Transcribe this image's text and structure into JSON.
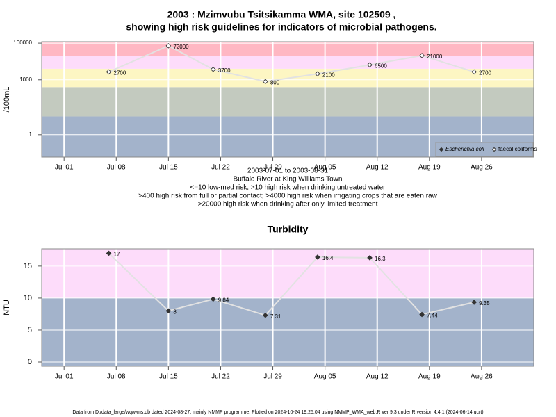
{
  "chart_data": [
    {
      "type": "line",
      "title": [
        "2003 : Mzimvubu Tsitsikamma WMA, site 102509 ,",
        "showing high risk guidelines for indicators of microbial pathogens."
      ],
      "y_label": "/100mL",
      "notes": [
        "2003-07-01 to 2003-08-31",
        "Buffalo River at King Williams Town",
        "<=10 low-med risk; >10 high risk when drinking untreated water",
        ">400 high risk from full or partial contact; >4000 high risk when irrigating crops that are eaten raw",
        ">20000 high risk when drinking after only limited treatment"
      ],
      "x": [
        "2003-07-07",
        "2003-07-15",
        "2003-07-21",
        "2003-07-28",
        "2003-08-04",
        "2003-08-11",
        "2003-08-18",
        "2003-08-25"
      ],
      "xlim": [
        "2003-06-28",
        "2003-09-02"
      ],
      "xticks": [
        {
          "value": "2003-07-01",
          "label": "Jul 01"
        },
        {
          "value": "2003-07-08",
          "label": "Jul 08"
        },
        {
          "value": "2003-07-15",
          "label": "Jul 15"
        },
        {
          "value": "2003-07-22",
          "label": "Jul 22"
        },
        {
          "value": "2003-07-29",
          "label": "Jul 29"
        },
        {
          "value": "2003-08-05",
          "label": "Aug 05"
        },
        {
          "value": "2003-08-12",
          "label": "Aug 12"
        },
        {
          "value": "2003-08-19",
          "label": "Aug 19"
        },
        {
          "value": "2003-08-26",
          "label": "Aug 26"
        }
      ],
      "log_scale": true,
      "ylim": [
        0.06,
        120000
      ],
      "yticks": [
        1,
        1000,
        100000
      ],
      "band_edges": [
        10,
        400,
        4000,
        20000
      ],
      "band_colors": [
        "#a3b3cb",
        "#c3cabf",
        "#fdf6c3",
        "#fddcfa",
        "#ffb7c3"
      ],
      "grid": true,
      "legend": "bottom-right",
      "series": [
        {
          "name": "Escherichia coli",
          "color": "#333333",
          "filled": true,
          "values": [
            null,
            null,
            null,
            null,
            null,
            null,
            null,
            null
          ]
        },
        {
          "name": "faecal coliforms",
          "color": "#333333",
          "filled": false,
          "values": [
            2700,
            72000,
            3700,
            800,
            2100,
            6500,
            21000,
            2700
          ]
        }
      ]
    },
    {
      "type": "line",
      "title": "Turbidity",
      "y_label": "NTU",
      "x": [
        "2003-07-07",
        "2003-07-15",
        "2003-07-21",
        "2003-07-28",
        "2003-08-04",
        "2003-08-11",
        "2003-08-18",
        "2003-08-25"
      ],
      "xlim": [
        "2003-06-28",
        "2003-09-02"
      ],
      "xticks": [
        {
          "value": "2003-07-01",
          "label": "Jul 01"
        },
        {
          "value": "2003-07-08",
          "label": "Jul 08"
        },
        {
          "value": "2003-07-15",
          "label": "Jul 15"
        },
        {
          "value": "2003-07-22",
          "label": "Jul 22"
        },
        {
          "value": "2003-07-29",
          "label": "Jul 29"
        },
        {
          "value": "2003-08-05",
          "label": "Aug 05"
        },
        {
          "value": "2003-08-12",
          "label": "Aug 12"
        },
        {
          "value": "2003-08-19",
          "label": "Aug 19"
        },
        {
          "value": "2003-08-26",
          "label": "Aug 26"
        }
      ],
      "log_scale": false,
      "ylim": [
        -0.65,
        17.7
      ],
      "yticks": [
        0,
        5,
        10,
        15
      ],
      "band_edges": [
        10
      ],
      "band_colors": [
        "#a3b3cb",
        "#fddcfa"
      ],
      "grid": true,
      "series": [
        {
          "color": "#333333",
          "filled": true,
          "values": [
            17,
            8,
            9.84,
            7.31,
            16.4,
            16.3,
            7.44,
            9.35
          ]
        }
      ]
    }
  ],
  "footer": "Data from D:/data_large/wq/wms.db dated 2024-08-27, mainly NMMP programme. Plotted on 2024-10-24 19:25:04 using NMMP_WMA_web.R ver 9.3 under R version 4.4.1 (2024-06-14 ucrt)"
}
